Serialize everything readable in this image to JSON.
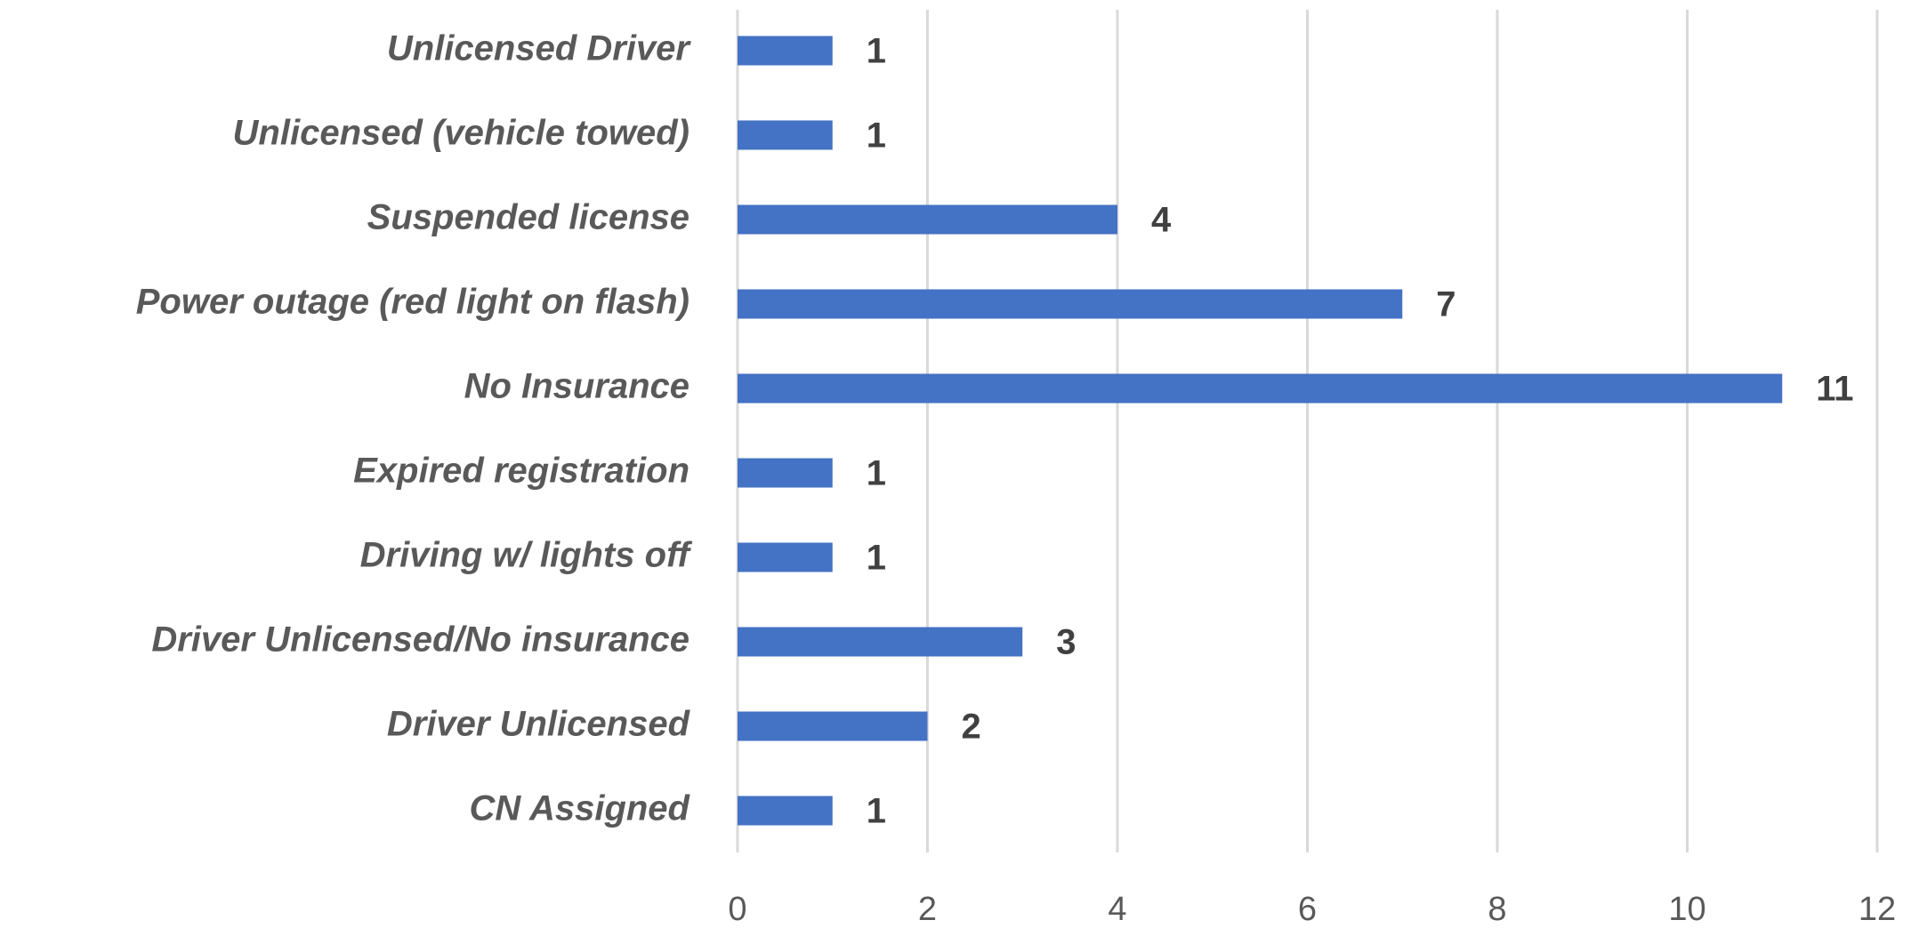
{
  "chart_data": {
    "type": "barh",
    "categories": [
      "Unlicensed Driver",
      "Unlicensed (vehicle towed)",
      "Suspended license",
      "Power outage (red light on flash)",
      "No Insurance",
      "Expired registration",
      "Driving w/ lights off",
      "Driver Unlicensed/No insurance",
      "Driver Unlicensed",
      "CN Assigned"
    ],
    "values": [
      1,
      1,
      4,
      7,
      11,
      1,
      1,
      3,
      2,
      1
    ],
    "color": "#4472c4",
    "xlim": [
      0,
      12
    ],
    "xticks": [
      0,
      2,
      4,
      6,
      8,
      10,
      12
    ],
    "grid": true
  }
}
